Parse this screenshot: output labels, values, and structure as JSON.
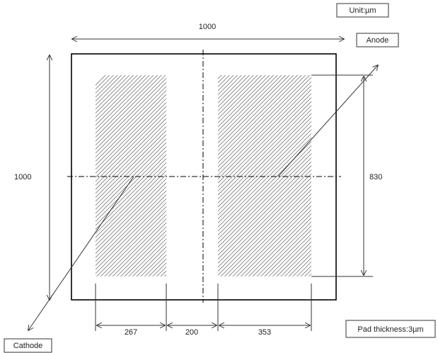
{
  "unit_label": "Unit:µm",
  "anode_label": "Anode",
  "cathode_label": "Cathode",
  "pad_thickness_label": "Pad thickness:3µm",
  "dimensions": {
    "top_width": "1000",
    "left_height": "1000",
    "right_height": "830",
    "bottom_cathode_width": "267",
    "bottom_gap": "200",
    "bottom_anode_width": "353"
  },
  "colors": {
    "outline": "#000000",
    "hatch": "#555555",
    "text": "#222222"
  }
}
